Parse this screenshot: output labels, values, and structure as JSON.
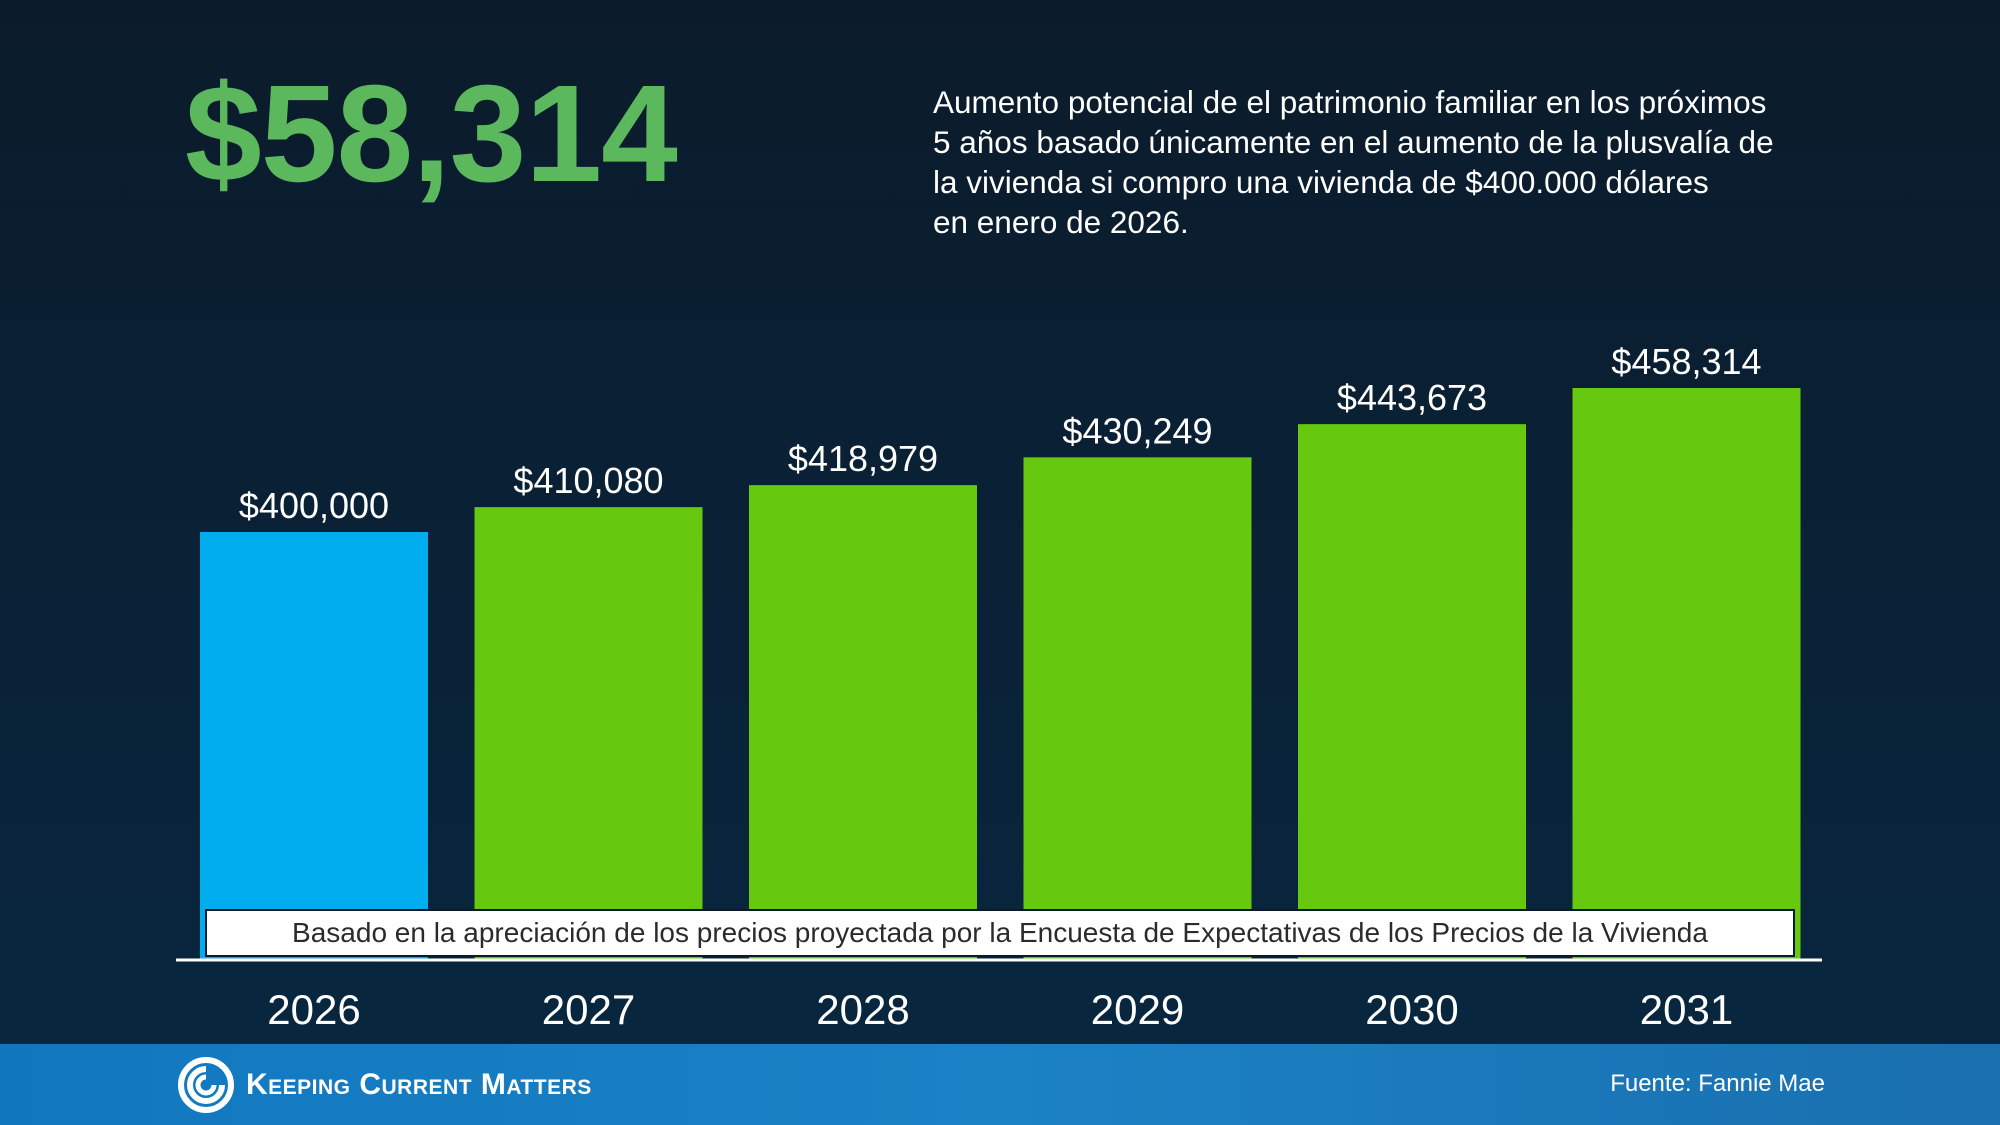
{
  "headline": {
    "value": "$58,314",
    "description_lines": [
      "Aumento potencial de el patrimonio familiar en los próximos",
      "5 años basado únicamente en el aumento de la plusvalía de",
      "la vivienda si compro una vivienda de $400.000 dólares",
      "en enero de 2026."
    ]
  },
  "note": "Basado en la apreciación de los precios proyectada por la Encuesta de Expectativas de los Precios de la Vivienda",
  "footer": {
    "brand": "Keeping Current Matters",
    "source": "Fuente: Fannie Mae"
  },
  "colors": {
    "headline": "#5cb85c",
    "base_bar": "#00aeef",
    "projected_bar": "#66c910",
    "footer": "#1a7cc2"
  },
  "chart_data": {
    "type": "bar",
    "categories": [
      "2026",
      "2027",
      "2028",
      "2029",
      "2030",
      "2031"
    ],
    "values": [
      400000,
      410080,
      418979,
      430249,
      443673,
      458314
    ],
    "value_labels": [
      "$400,000",
      "$410,080",
      "$418,979",
      "$430,249",
      "$443,673",
      "$458,314"
    ],
    "title": "",
    "xlabel": "",
    "ylabel": "",
    "ylim": [
      0,
      470000
    ],
    "grid": false,
    "legend": "none",
    "bar_colors": [
      "#00aeef",
      "#66c910",
      "#66c910",
      "#66c910",
      "#66c910",
      "#66c910"
    ]
  }
}
